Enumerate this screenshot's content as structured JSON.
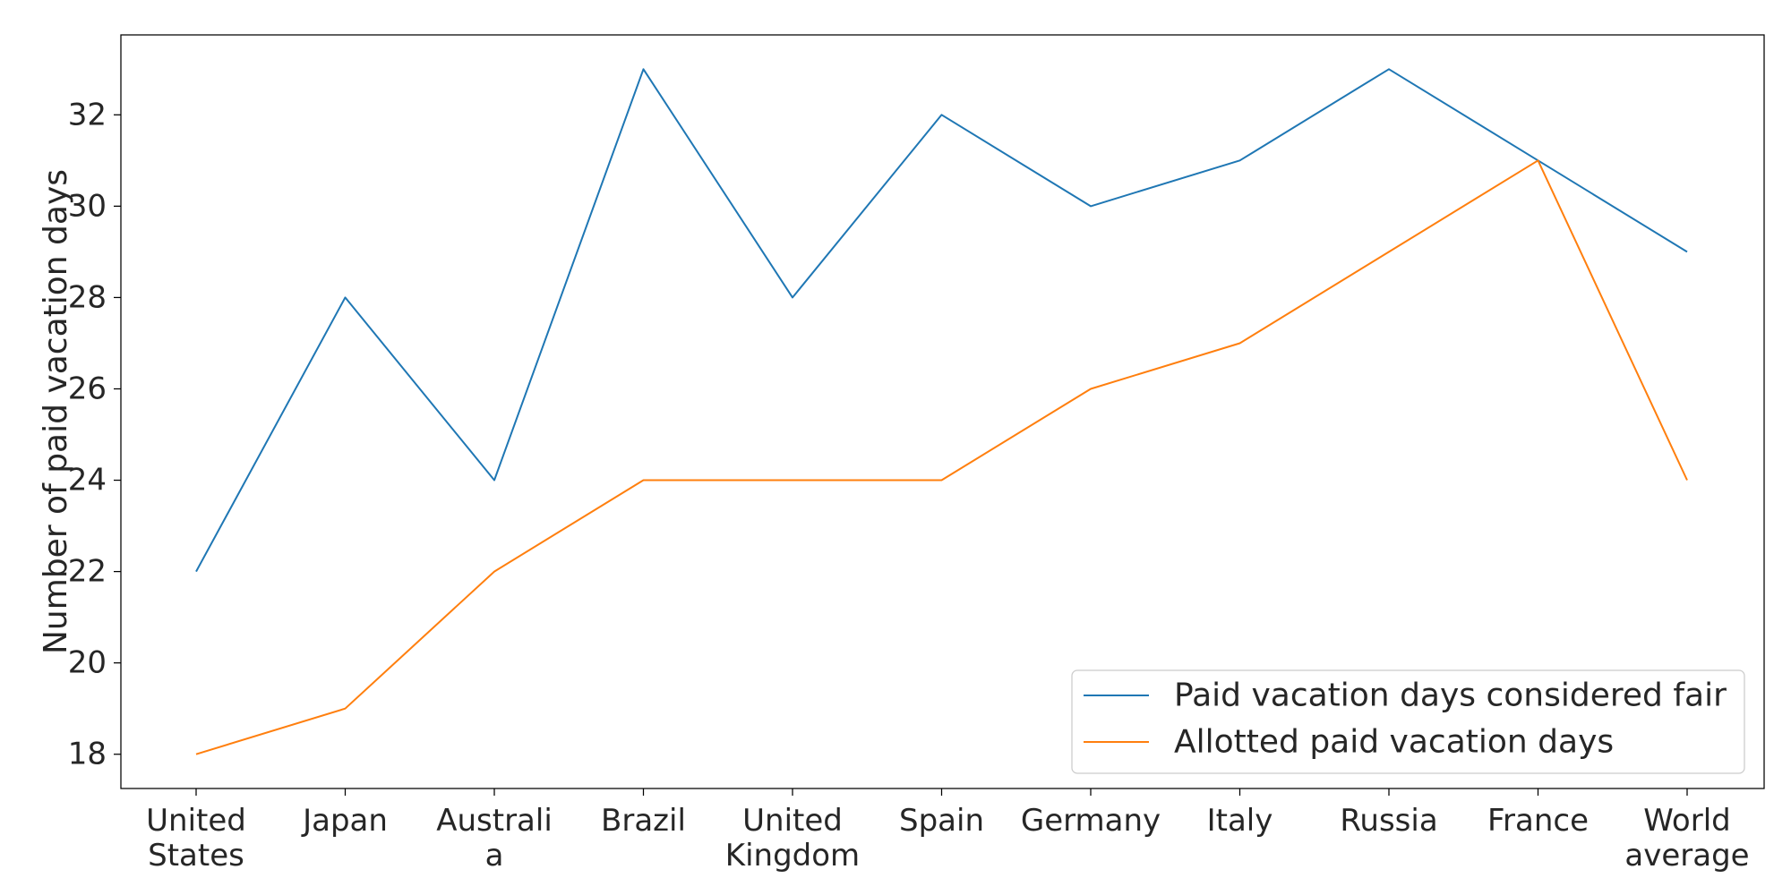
{
  "chart_data": {
    "type": "line",
    "categories": [
      [
        "United",
        "States"
      ],
      [
        "Japan"
      ],
      [
        "Australi",
        "a"
      ],
      [
        "Brazil"
      ],
      [
        "United",
        "Kingdom"
      ],
      [
        "Spain"
      ],
      [
        "Germany"
      ],
      [
        "Italy"
      ],
      [
        "Russia"
      ],
      [
        "France"
      ],
      [
        "World",
        "average"
      ]
    ],
    "series": [
      {
        "name": "Paid vacation days considered fair",
        "color": "#1f77b4",
        "values": [
          22,
          28,
          24,
          33,
          28,
          32,
          30,
          31,
          33,
          31,
          29
        ]
      },
      {
        "name": "Allotted paid vacation days",
        "color": "#ff7f0e",
        "values": [
          18,
          19,
          22,
          24,
          24,
          24,
          26,
          27,
          29,
          31,
          24
        ]
      }
    ],
    "ylabel": "Number of paid vacation days",
    "xlabel": "",
    "title": "",
    "yticks": [
      18,
      20,
      22,
      24,
      26,
      28,
      30,
      32
    ],
    "ylim": [
      17.25,
      33.75
    ],
    "grid": false,
    "legend_position": "lower-right"
  }
}
